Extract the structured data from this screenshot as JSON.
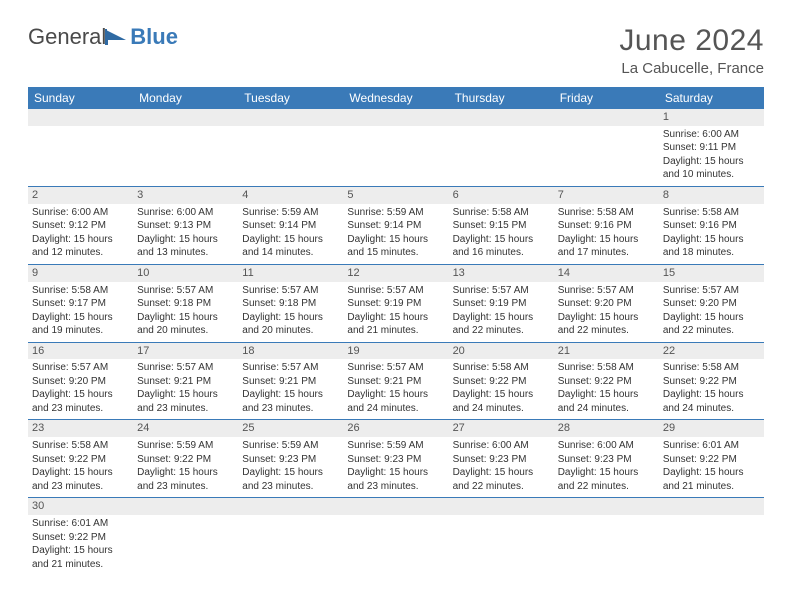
{
  "colors": {
    "header_bg": "#3a7ab8",
    "header_text": "#ffffff",
    "cell_border": "#3a7ab8",
    "daynum_bg": "#ededed",
    "body_text": "#333333",
    "title_text": "#555555"
  },
  "logo": {
    "part1": "General",
    "part2": "Blue"
  },
  "title": "June 2024",
  "location": "La Cabucelle, France",
  "weekdays": [
    "Sunday",
    "Monday",
    "Tuesday",
    "Wednesday",
    "Thursday",
    "Friday",
    "Saturday"
  ],
  "first_weekday_index": 6,
  "days": [
    {
      "n": 1,
      "sunrise": "6:00 AM",
      "sunset": "9:11 PM",
      "dl_h": 15,
      "dl_m": 10
    },
    {
      "n": 2,
      "sunrise": "6:00 AM",
      "sunset": "9:12 PM",
      "dl_h": 15,
      "dl_m": 12
    },
    {
      "n": 3,
      "sunrise": "6:00 AM",
      "sunset": "9:13 PM",
      "dl_h": 15,
      "dl_m": 13
    },
    {
      "n": 4,
      "sunrise": "5:59 AM",
      "sunset": "9:14 PM",
      "dl_h": 15,
      "dl_m": 14
    },
    {
      "n": 5,
      "sunrise": "5:59 AM",
      "sunset": "9:14 PM",
      "dl_h": 15,
      "dl_m": 15
    },
    {
      "n": 6,
      "sunrise": "5:58 AM",
      "sunset": "9:15 PM",
      "dl_h": 15,
      "dl_m": 16
    },
    {
      "n": 7,
      "sunrise": "5:58 AM",
      "sunset": "9:16 PM",
      "dl_h": 15,
      "dl_m": 17
    },
    {
      "n": 8,
      "sunrise": "5:58 AM",
      "sunset": "9:16 PM",
      "dl_h": 15,
      "dl_m": 18
    },
    {
      "n": 9,
      "sunrise": "5:58 AM",
      "sunset": "9:17 PM",
      "dl_h": 15,
      "dl_m": 19
    },
    {
      "n": 10,
      "sunrise": "5:57 AM",
      "sunset": "9:18 PM",
      "dl_h": 15,
      "dl_m": 20
    },
    {
      "n": 11,
      "sunrise": "5:57 AM",
      "sunset": "9:18 PM",
      "dl_h": 15,
      "dl_m": 20
    },
    {
      "n": 12,
      "sunrise": "5:57 AM",
      "sunset": "9:19 PM",
      "dl_h": 15,
      "dl_m": 21
    },
    {
      "n": 13,
      "sunrise": "5:57 AM",
      "sunset": "9:19 PM",
      "dl_h": 15,
      "dl_m": 22
    },
    {
      "n": 14,
      "sunrise": "5:57 AM",
      "sunset": "9:20 PM",
      "dl_h": 15,
      "dl_m": 22
    },
    {
      "n": 15,
      "sunrise": "5:57 AM",
      "sunset": "9:20 PM",
      "dl_h": 15,
      "dl_m": 22
    },
    {
      "n": 16,
      "sunrise": "5:57 AM",
      "sunset": "9:20 PM",
      "dl_h": 15,
      "dl_m": 23
    },
    {
      "n": 17,
      "sunrise": "5:57 AM",
      "sunset": "9:21 PM",
      "dl_h": 15,
      "dl_m": 23
    },
    {
      "n": 18,
      "sunrise": "5:57 AM",
      "sunset": "9:21 PM",
      "dl_h": 15,
      "dl_m": 23
    },
    {
      "n": 19,
      "sunrise": "5:57 AM",
      "sunset": "9:21 PM",
      "dl_h": 15,
      "dl_m": 24
    },
    {
      "n": 20,
      "sunrise": "5:58 AM",
      "sunset": "9:22 PM",
      "dl_h": 15,
      "dl_m": 24
    },
    {
      "n": 21,
      "sunrise": "5:58 AM",
      "sunset": "9:22 PM",
      "dl_h": 15,
      "dl_m": 24
    },
    {
      "n": 22,
      "sunrise": "5:58 AM",
      "sunset": "9:22 PM",
      "dl_h": 15,
      "dl_m": 24
    },
    {
      "n": 23,
      "sunrise": "5:58 AM",
      "sunset": "9:22 PM",
      "dl_h": 15,
      "dl_m": 23
    },
    {
      "n": 24,
      "sunrise": "5:59 AM",
      "sunset": "9:22 PM",
      "dl_h": 15,
      "dl_m": 23
    },
    {
      "n": 25,
      "sunrise": "5:59 AM",
      "sunset": "9:23 PM",
      "dl_h": 15,
      "dl_m": 23
    },
    {
      "n": 26,
      "sunrise": "5:59 AM",
      "sunset": "9:23 PM",
      "dl_h": 15,
      "dl_m": 23
    },
    {
      "n": 27,
      "sunrise": "6:00 AM",
      "sunset": "9:23 PM",
      "dl_h": 15,
      "dl_m": 22
    },
    {
      "n": 28,
      "sunrise": "6:00 AM",
      "sunset": "9:23 PM",
      "dl_h": 15,
      "dl_m": 22
    },
    {
      "n": 29,
      "sunrise": "6:01 AM",
      "sunset": "9:22 PM",
      "dl_h": 15,
      "dl_m": 21
    },
    {
      "n": 30,
      "sunrise": "6:01 AM",
      "sunset": "9:22 PM",
      "dl_h": 15,
      "dl_m": 21
    }
  ],
  "labels": {
    "sunrise": "Sunrise:",
    "sunset": "Sunset:",
    "daylight_prefix": "Daylight:",
    "hours_word": "hours",
    "and_word": "and",
    "minutes_word": "minutes."
  }
}
